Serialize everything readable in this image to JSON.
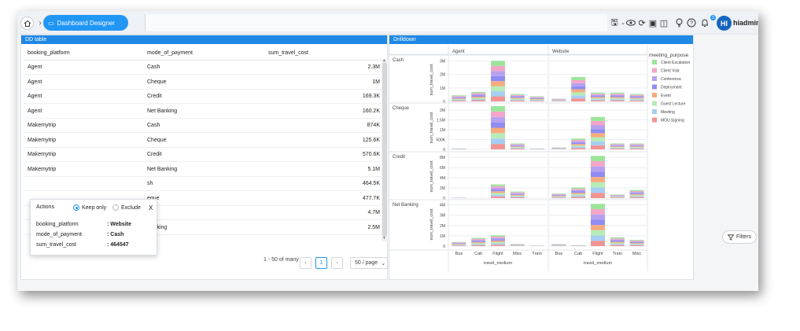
{
  "breadcrumb": {
    "current": "Dashboard Designer"
  },
  "user": {
    "initials": "HI",
    "name": "hiadmin"
  },
  "notifications": {
    "count": "3"
  },
  "dd_table": {
    "title": "DD table",
    "columns": [
      "booking_platform",
      "mode_of_payment",
      "sum_travel_cost"
    ],
    "rows": [
      [
        "Agent",
        "Cash",
        "2.3M"
      ],
      [
        "Agent",
        "Cheque",
        "1M"
      ],
      [
        "Agent",
        "Credit",
        "169.3K"
      ],
      [
        "Agent",
        "Net Banking",
        "160.2K"
      ],
      [
        "Makemytrip",
        "Cash",
        "874K"
      ],
      [
        "Makemytrip",
        "Cheque",
        "125.6K"
      ],
      [
        "Makemytrip",
        "Credit",
        "570.6K"
      ],
      [
        "Makemytrip",
        "Net Banking",
        "5.1M"
      ],
      [
        "",
        "sh",
        "464.5K"
      ],
      [
        "",
        "eque",
        "477.7K"
      ],
      [
        "",
        "dit",
        "4.7M"
      ],
      [
        "",
        "Banking",
        "2.5M"
      ]
    ],
    "pagination": {
      "range": "1 - 50 of many",
      "page": "1",
      "page_size": "50 / page"
    }
  },
  "actions_popup": {
    "title": "Actions",
    "keep_only": "Keep only",
    "exclude": "Exclude",
    "close": "X",
    "fields": [
      {
        "label": "booking_platform",
        "value": ": Website"
      },
      {
        "label": "mode_of_payment",
        "value": ": Cash"
      },
      {
        "label": "sum_travel_cost",
        "value": ": 464547"
      }
    ]
  },
  "drilldown": {
    "title": "Drilldown",
    "legend_title": "meeting_purpose",
    "filters_label": "Filters"
  },
  "chart_data": {
    "type": "bar",
    "stacked": true,
    "column_facets": [
      "Agent",
      "Website"
    ],
    "row_facets": [
      "Cash",
      "Cheque",
      "Credit",
      "Net Banking"
    ],
    "categories_by_column": {
      "Agent": [
        "Bus",
        "Cab",
        "Flight",
        "Misc",
        "Train"
      ],
      "Website": [
        "Bus",
        "Cab",
        "Flight",
        "Train",
        "Misc"
      ]
    },
    "xlabel": "travel_medium",
    "ylabel": "sum_travel_cost",
    "y_ticks": {
      "Cash": [
        "0",
        "1M",
        "2M",
        "3M"
      ],
      "Cheque": [
        "0",
        "500K",
        "1M",
        "1.5M",
        "2M"
      ],
      "Credit": [
        "0",
        "2M",
        "4M",
        "6M",
        "8M"
      ],
      "Net Banking": [
        "0",
        "1M",
        "2M",
        "3M",
        "4M"
      ]
    },
    "ylim": {
      "Cash": [
        0,
        3.2
      ],
      "Cheque": [
        0,
        2.2
      ],
      "Credit": [
        0,
        8.5
      ],
      "Net Banking": [
        0,
        4.2
      ]
    },
    "series_names": [
      "Client Escalation",
      "Client Visit",
      "Conference",
      "Deployment",
      "Event",
      "Guest Lecture",
      "Meeting",
      "MOU Signing"
    ],
    "series_colors": [
      "#9be59b",
      "#f4a6c8",
      "#b7a1ef",
      "#8f8cf2",
      "#f7ab7e",
      "#b6ecb6",
      "#a6cdf2",
      "#f09494"
    ],
    "totals_millions": {
      "Cash": {
        "Agent": [
          0.45,
          0.7,
          3.0,
          0.55,
          0.38
        ],
        "Website": [
          0.2,
          1.8,
          0.65,
          0.65,
          0.55
        ]
      },
      "Cheque": {
        "Agent": [
          0.05,
          0,
          2.2,
          0.3,
          0.05
        ],
        "Website": [
          0.1,
          0.55,
          1.65,
          0.3,
          0.3
        ]
      },
      "Credit": {
        "Agent": [
          0.1,
          0,
          2.7,
          1.3,
          0
        ],
        "Website": [
          0.9,
          2.1,
          8.3,
          0.7,
          1.6
        ]
      },
      "Net Banking": {
        "Agent": [
          0.4,
          0.8,
          1.05,
          0.2,
          0.05
        ],
        "Website": [
          0.2,
          0.1,
          4.1,
          0.85,
          0.6
        ]
      }
    },
    "legend": "right"
  }
}
